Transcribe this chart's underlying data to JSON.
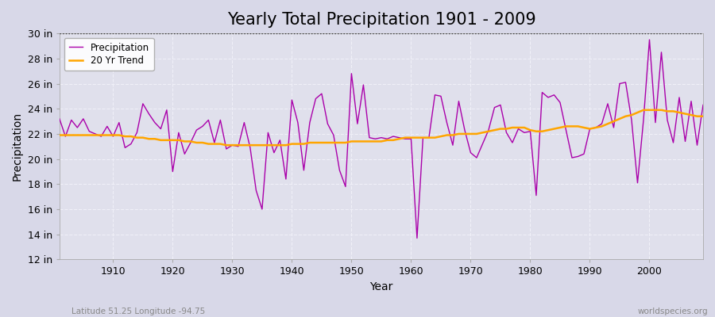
{
  "title": "Yearly Total Precipitation 1901 - 2009",
  "xlabel": "Year",
  "ylabel": "Precipitation",
  "bottom_left_label": "Latitude 51.25 Longitude -94.75",
  "bottom_right_label": "worldspecies.org",
  "years": [
    1901,
    1902,
    1903,
    1904,
    1905,
    1906,
    1907,
    1908,
    1909,
    1910,
    1911,
    1912,
    1913,
    1914,
    1915,
    1916,
    1917,
    1918,
    1919,
    1920,
    1921,
    1922,
    1923,
    1924,
    1925,
    1926,
    1927,
    1928,
    1929,
    1930,
    1931,
    1932,
    1933,
    1934,
    1935,
    1936,
    1937,
    1938,
    1939,
    1940,
    1941,
    1942,
    1943,
    1944,
    1945,
    1946,
    1947,
    1948,
    1949,
    1950,
    1951,
    1952,
    1953,
    1954,
    1955,
    1956,
    1957,
    1958,
    1959,
    1960,
    1961,
    1962,
    1963,
    1964,
    1965,
    1966,
    1967,
    1968,
    1969,
    1970,
    1971,
    1972,
    1973,
    1974,
    1975,
    1976,
    1977,
    1978,
    1979,
    1980,
    1981,
    1982,
    1983,
    1984,
    1985,
    1986,
    1987,
    1988,
    1989,
    1990,
    1991,
    1992,
    1993,
    1994,
    1995,
    1996,
    1997,
    1998,
    1999,
    2000,
    2001,
    2002,
    2003,
    2004,
    2005,
    2006,
    2007,
    2008,
    2009
  ],
  "precip": [
    23.2,
    21.8,
    23.1,
    22.5,
    23.2,
    22.2,
    22.0,
    21.8,
    22.6,
    21.8,
    22.9,
    20.9,
    21.2,
    22.1,
    24.4,
    23.6,
    22.9,
    22.4,
    23.9,
    19.0,
    22.1,
    20.4,
    21.3,
    22.3,
    22.6,
    23.1,
    21.3,
    23.1,
    20.8,
    21.1,
    21.0,
    22.9,
    20.9,
    17.5,
    16.0,
    22.1,
    20.5,
    21.5,
    18.4,
    24.7,
    22.9,
    19.1,
    22.9,
    24.8,
    25.2,
    22.8,
    21.9,
    19.1,
    17.8,
    26.8,
    22.8,
    25.9,
    21.7,
    21.6,
    21.7,
    21.6,
    21.8,
    21.7,
    21.6,
    21.6,
    13.7,
    21.7,
    21.7,
    25.1,
    25.0,
    22.9,
    21.1,
    24.6,
    22.3,
    20.5,
    20.1,
    21.2,
    22.3,
    24.1,
    24.3,
    22.1,
    21.3,
    22.4,
    22.1,
    22.2,
    17.1,
    25.3,
    24.9,
    25.1,
    24.5,
    22.3,
    20.1,
    20.2,
    20.4,
    22.4,
    22.5,
    22.8,
    24.4,
    22.5,
    26.0,
    26.1,
    23.1,
    18.1,
    23.1,
    29.5,
    22.9,
    28.5,
    23.1,
    21.3,
    24.9,
    21.4,
    24.6,
    21.1,
    24.3
  ],
  "trend": [
    21.9,
    21.9,
    21.9,
    21.9,
    21.9,
    21.9,
    21.9,
    21.9,
    21.9,
    21.9,
    21.9,
    21.8,
    21.8,
    21.7,
    21.7,
    21.6,
    21.6,
    21.5,
    21.5,
    21.5,
    21.5,
    21.4,
    21.4,
    21.3,
    21.3,
    21.2,
    21.2,
    21.2,
    21.1,
    21.1,
    21.1,
    21.1,
    21.1,
    21.1,
    21.1,
    21.1,
    21.1,
    21.1,
    21.1,
    21.2,
    21.2,
    21.2,
    21.3,
    21.3,
    21.3,
    21.3,
    21.3,
    21.3,
    21.3,
    21.4,
    21.4,
    21.4,
    21.4,
    21.4,
    21.4,
    21.5,
    21.5,
    21.6,
    21.7,
    21.7,
    21.7,
    21.7,
    21.7,
    21.7,
    21.8,
    21.9,
    21.9,
    22.0,
    22.0,
    22.0,
    22.0,
    22.1,
    22.2,
    22.3,
    22.4,
    22.4,
    22.5,
    22.5,
    22.5,
    22.3,
    22.2,
    22.2,
    22.3,
    22.4,
    22.5,
    22.6,
    22.6,
    22.6,
    22.5,
    22.4,
    22.5,
    22.6,
    22.8,
    23.0,
    23.2,
    23.4,
    23.5,
    23.7,
    23.9,
    23.9,
    23.9,
    23.9,
    23.8,
    23.8,
    23.7,
    23.6,
    23.5,
    23.4,
    23.4
  ],
  "precip_color": "#aa00aa",
  "trend_color": "#FFA500",
  "fig_bg_color": "#d8d8e8",
  "plot_bg_color": "#e0e0ec",
  "grid_color": "#f0f0f8",
  "title_fontsize": 15,
  "label_fontsize": 10,
  "tick_fontsize": 9,
  "ylim": [
    12,
    30
  ],
  "yticks": [
    12,
    14,
    16,
    18,
    20,
    22,
    24,
    26,
    28,
    30
  ],
  "ytick_labels": [
    "12 in",
    "14 in",
    "16 in",
    "18 in",
    "20 in",
    "22 in",
    "24 in",
    "26 in",
    "28 in",
    "30 in"
  ],
  "xlim": [
    1901,
    2009
  ],
  "xticks": [
    1910,
    1920,
    1930,
    1940,
    1950,
    1960,
    1970,
    1980,
    1990,
    2000
  ]
}
